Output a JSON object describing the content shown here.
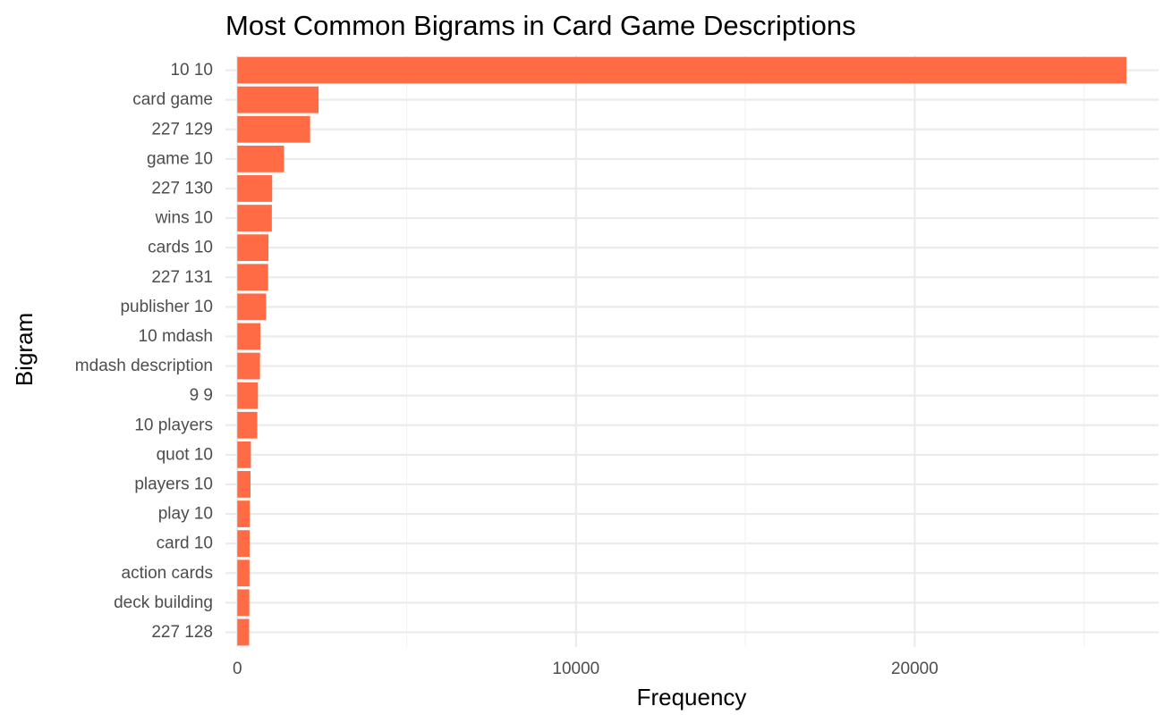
{
  "chart_data": {
    "type": "bar",
    "orientation": "horizontal",
    "title": "Most Common Bigrams in Card Game Descriptions",
    "xlabel": "Frequency",
    "ylabel": "Bigram",
    "categories": [
      "10 10",
      "card game",
      "227 129",
      "game 10",
      "227 130",
      "wins 10",
      "cards 10",
      "227 131",
      "publisher 10",
      "10 mdash",
      "mdash description",
      "9 9",
      "10 players",
      "quot 10",
      "players 10",
      "play 10",
      "card 10",
      "action cards",
      "deck building",
      "227 128"
    ],
    "values": [
      26250,
      2400,
      2150,
      1380,
      1030,
      1020,
      920,
      910,
      850,
      680,
      670,
      610,
      590,
      400,
      390,
      370,
      365,
      360,
      355,
      350
    ],
    "xlim": [
      -350,
      27200
    ],
    "xticks": [
      0,
      10000,
      20000
    ],
    "xtick_labels": [
      "0",
      "10000",
      "20000"
    ],
    "x_minor_gridlines": [
      5000,
      15000,
      25000
    ],
    "grid": true,
    "legend": "none",
    "colors": {
      "bar": "#FF6B45",
      "grid_major": "#EBEBEB",
      "grid_minor": "#F3F3F3",
      "tick_label": "#4D4D4D",
      "text": "#000000",
      "background": "#FFFFFF"
    }
  }
}
